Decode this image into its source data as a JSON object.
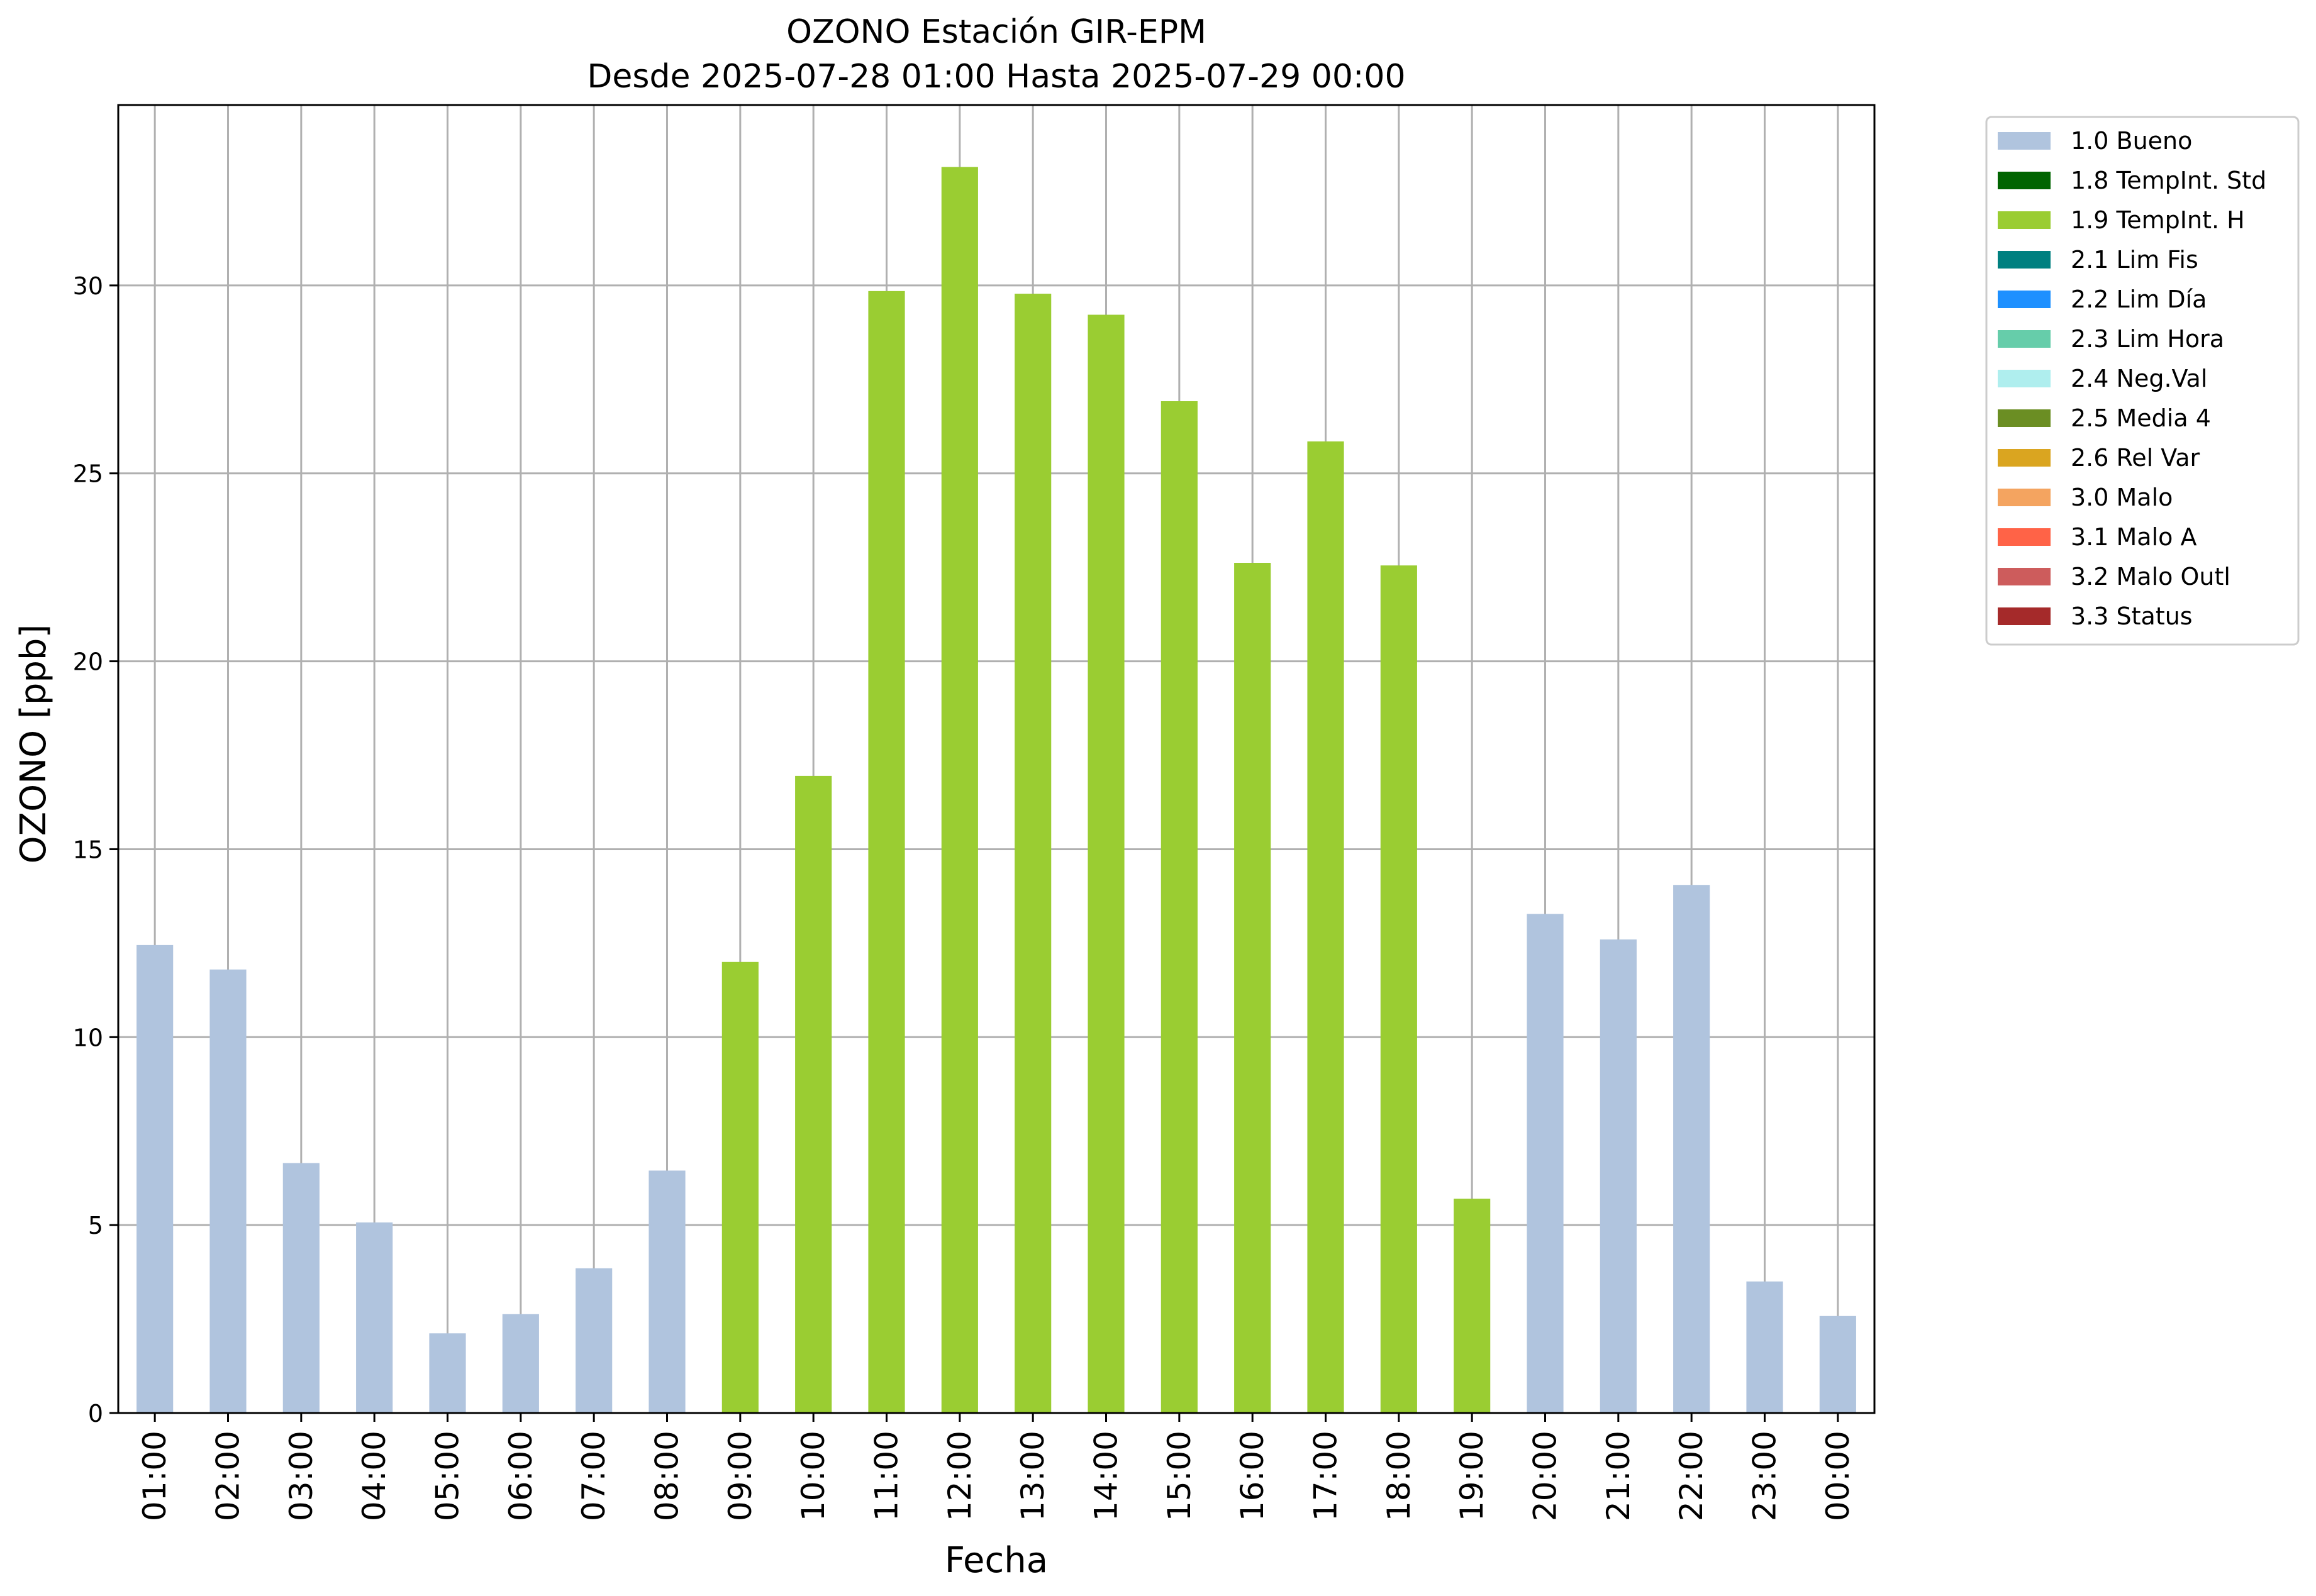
{
  "chart_data": {
    "type": "bar",
    "title": "OZONO Estación GIR-EPM",
    "subtitle": "Desde 2025-07-28 01:00 Hasta 2025-07-29 00:00",
    "xlabel": "Fecha",
    "ylabel": "OZONO [ppb]",
    "ylim": [
      0,
      34.8
    ],
    "yticks": [
      0,
      5,
      10,
      15,
      20,
      25,
      30
    ],
    "grid": true,
    "legend_position": "outside-top-right",
    "categories": [
      "01:00",
      "02:00",
      "03:00",
      "04:00",
      "05:00",
      "06:00",
      "07:00",
      "08:00",
      "09:00",
      "10:00",
      "11:00",
      "12:00",
      "13:00",
      "14:00",
      "15:00",
      "16:00",
      "17:00",
      "18:00",
      "19:00",
      "20:00",
      "21:00",
      "22:00",
      "23:00",
      "00:00"
    ],
    "values": [
      12.45,
      11.8,
      6.65,
      5.07,
      2.12,
      2.63,
      3.85,
      6.45,
      12.0,
      16.95,
      29.85,
      33.15,
      29.78,
      29.22,
      26.92,
      22.62,
      25.85,
      22.55,
      5.7,
      13.28,
      12.6,
      14.05,
      3.5,
      2.58
    ],
    "flags": [
      "1.0 Bueno",
      "1.0 Bueno",
      "1.0 Bueno",
      "1.0 Bueno",
      "1.0 Bueno",
      "1.0 Bueno",
      "1.0 Bueno",
      "1.0 Bueno",
      "1.9 TempInt. H",
      "1.9 TempInt. H",
      "1.9 TempInt. H",
      "1.9 TempInt. H",
      "1.9 TempInt. H",
      "1.9 TempInt. H",
      "1.9 TempInt. H",
      "1.9 TempInt. H",
      "1.9 TempInt. H",
      "1.9 TempInt. H",
      "1.9 TempInt. H",
      "1.0 Bueno",
      "1.0 Bueno",
      "1.0 Bueno",
      "1.0 Bueno",
      "1.0 Bueno"
    ],
    "legend": [
      {
        "label": "1.0 Bueno",
        "color": "#b0c4de"
      },
      {
        "label": "1.8 TempInt. Std",
        "color": "#006400"
      },
      {
        "label": "1.9 TempInt. H",
        "color": "#9acd32"
      },
      {
        "label": "2.1 Lim Fis",
        "color": "#008080"
      },
      {
        "label": "2.2 Lim Día",
        "color": "#1e90ff"
      },
      {
        "label": "2.3 Lim Hora",
        "color": "#66cdaa"
      },
      {
        "label": "2.4 Neg.Val",
        "color": "#afeeee"
      },
      {
        "label": "2.5 Media 4",
        "color": "#6b8e23"
      },
      {
        "label": "2.6 Rel Var",
        "color": "#daa520"
      },
      {
        "label": "3.0 Malo",
        "color": "#f4a460"
      },
      {
        "label": "3.1 Malo A",
        "color": "#ff6347"
      },
      {
        "label": "3.2 Malo Outl",
        "color": "#cd5c5c"
      },
      {
        "label": "3.3 Status",
        "color": "#a52a2a"
      }
    ]
  }
}
